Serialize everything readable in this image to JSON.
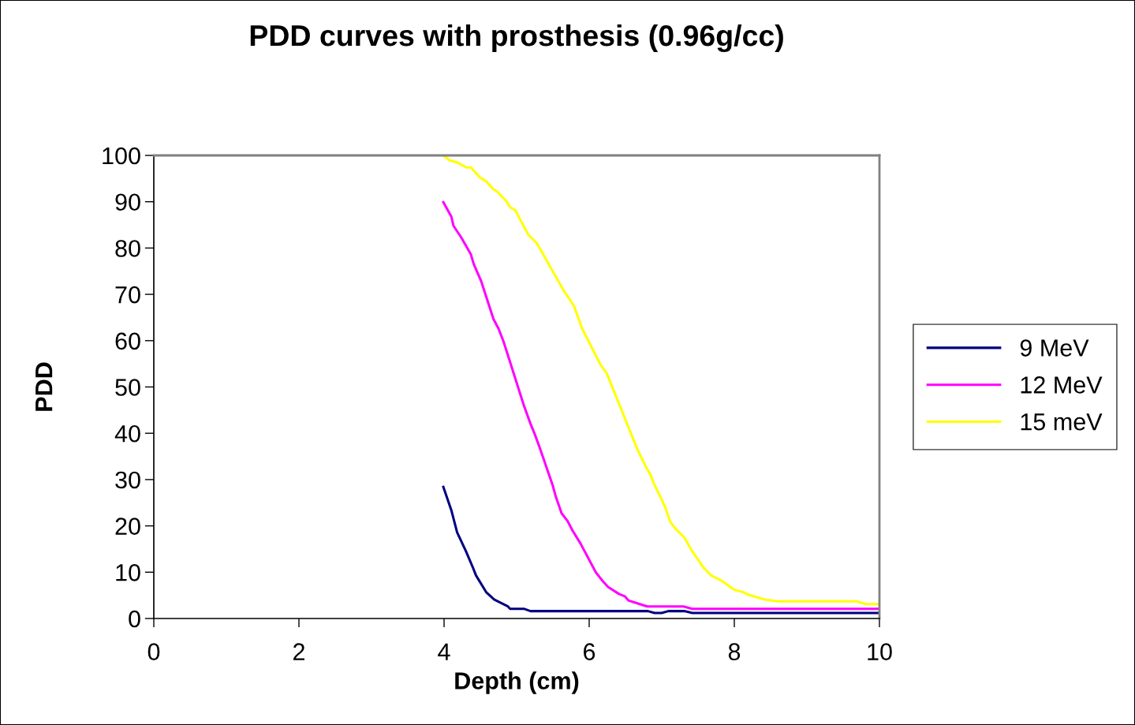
{
  "chart_data": {
    "type": "line",
    "title": "PDD curves with prosthesis (0.96g/cc)",
    "xlabel": "Depth (cm)",
    "ylabel": "PDD",
    "xlim": [
      0,
      10
    ],
    "xticks": [
      0,
      2,
      4,
      6,
      8,
      10
    ],
    "ylim": [
      0,
      100
    ],
    "yticks": [
      0,
      10,
      20,
      30,
      40,
      50,
      60,
      70,
      80,
      90,
      100
    ],
    "grid": false,
    "legend": "right",
    "marker": "none",
    "line_style": "solid",
    "series": [
      {
        "name": "9 MeV",
        "color": "#000080",
        "x": [
          3.99,
          4.1,
          4.18,
          4.3,
          4.4,
          4.44,
          4.58,
          4.69,
          4.88,
          4.91,
          5.1,
          5.19,
          6.81,
          6.9,
          7.0,
          7.09,
          7.31,
          7.42,
          10.0
        ],
        "values": [
          28.4,
          23.4,
          18.6,
          14.6,
          10.9,
          9.3,
          5.7,
          4.1,
          2.6,
          2.1,
          2.1,
          1.6,
          1.6,
          1.2,
          1.2,
          1.6,
          1.6,
          1.2,
          1.2
        ]
      },
      {
        "name": "12 MeV",
        "color": "#ff00ff",
        "x": [
          3.99,
          4.1,
          4.13,
          4.24,
          4.37,
          4.41,
          4.51,
          4.68,
          4.75,
          4.82,
          5.1,
          5.19,
          5.25,
          5.32,
          5.5,
          5.54,
          5.62,
          5.7,
          5.77,
          5.88,
          6.09,
          6.19,
          6.26,
          6.41,
          6.49,
          6.54,
          6.62,
          6.8,
          7.3,
          7.42,
          10.0
        ],
        "values": [
          89.9,
          86.8,
          84.8,
          82.2,
          78.6,
          76.5,
          72.9,
          64.7,
          62.6,
          59.8,
          46.0,
          42.1,
          39.8,
          36.8,
          28.6,
          26.3,
          22.7,
          21.1,
          19.0,
          16.2,
          10.0,
          8.0,
          6.8,
          5.3,
          4.8,
          3.9,
          3.5,
          2.6,
          2.6,
          2.1,
          2.1
        ]
      },
      {
        "name": "15 meV",
        "color": "#ffff00",
        "x": [
          3.99,
          4.08,
          4.18,
          4.31,
          4.37,
          4.49,
          4.58,
          4.68,
          4.73,
          4.86,
          4.91,
          4.98,
          5.16,
          5.28,
          5.65,
          5.79,
          5.86,
          5.9,
          6.16,
          6.24,
          6.66,
          6.78,
          6.85,
          6.89,
          6.98,
          7.04,
          7.12,
          7.19,
          7.31,
          7.41,
          7.58,
          7.68,
          7.81,
          8.0,
          8.12,
          8.2,
          8.42,
          8.6,
          9.69,
          9.81,
          10.0
        ],
        "values": [
          100.0,
          98.9,
          98.5,
          97.4,
          97.4,
          95.3,
          94.4,
          92.7,
          92.2,
          90.1,
          88.8,
          88.2,
          82.9,
          81.0,
          70.8,
          67.5,
          64.5,
          62.7,
          54.7,
          53.0,
          36.7,
          32.8,
          30.9,
          29.2,
          26.3,
          24.3,
          20.8,
          19.4,
          17.5,
          14.8,
          10.9,
          9.3,
          8.3,
          6.2,
          5.7,
          5.1,
          4.1,
          3.7,
          3.7,
          3.1,
          3.1
        ]
      }
    ]
  }
}
